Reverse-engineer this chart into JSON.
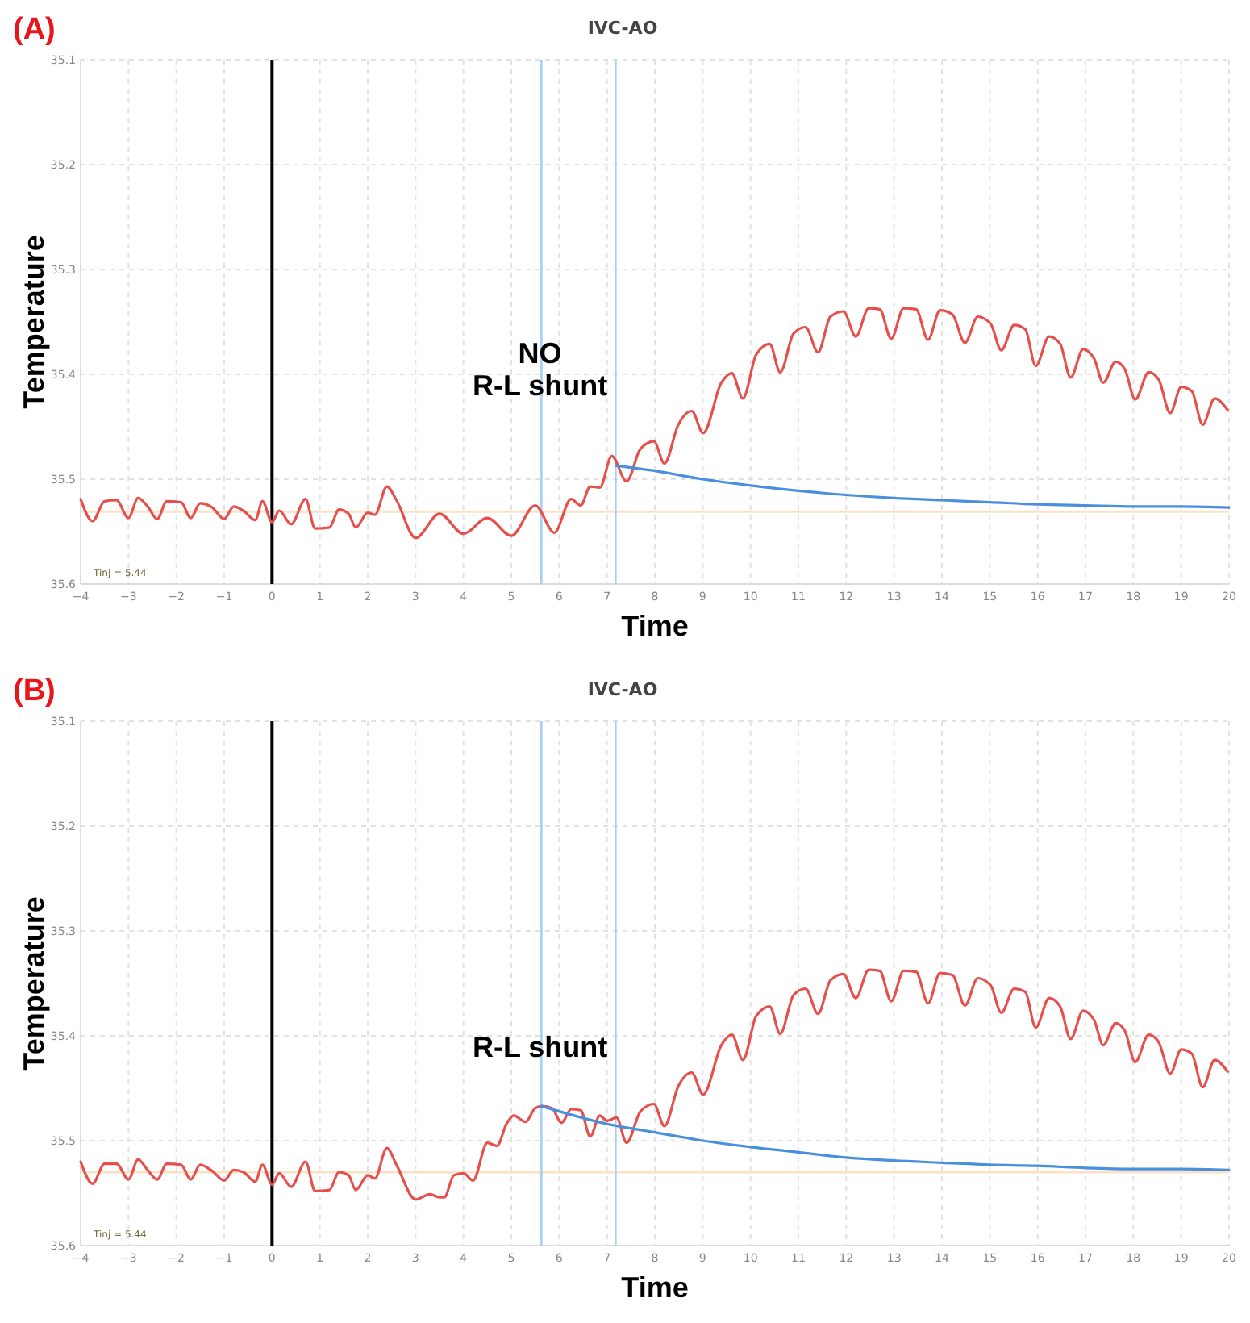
{
  "chart_data": [
    {
      "type": "line",
      "title": "IVC-AO",
      "xlabel": "Time",
      "ylabel": "Temperature",
      "xlim": [
        -4,
        20
      ],
      "ylim": [
        35.6,
        35.1
      ],
      "xticks": [
        -4,
        -3,
        -2,
        -1,
        0,
        1,
        2,
        3,
        4,
        5,
        6,
        7,
        8,
        9,
        10,
        11,
        12,
        13,
        14,
        15,
        16,
        17,
        18,
        19,
        20
      ],
      "yticks": [
        35.1,
        35.2,
        35.3,
        35.4,
        35.5,
        35.6
      ],
      "grid": true,
      "line_style": "solid",
      "marker": "none",
      "annotations": [
        "(A)",
        "Tinj = 5.44",
        {
          "text": "NO\nR-L shunt",
          "x": 5.6,
          "y": 35.42
        }
      ],
      "ref_lines": [
        {
          "axis": "y",
          "value": 35.531,
          "color": "#fbe1c6"
        },
        {
          "axis": "x",
          "value": 0,
          "color": "#000000"
        },
        {
          "axis": "x",
          "value": 5.63,
          "color": "#a9cff2"
        },
        {
          "axis": "x",
          "value": 7.18,
          "color": "#a9cff2"
        }
      ],
      "series": [
        {
          "color": "#e5504c",
          "x": [
            -4,
            -3.75,
            -3.5,
            -3.25,
            -3,
            -2.8,
            -2.6,
            -2.4,
            -2.2,
            -1.9,
            -1.7,
            -1.5,
            -1.25,
            -1,
            -0.8,
            -0.6,
            -0.35,
            -0.2,
            0,
            0.15,
            0.4,
            0.7,
            0.9,
            1.2,
            1.4,
            1.6,
            1.75,
            2,
            2.15,
            2.4,
            2.6,
            3,
            3.5,
            4,
            4.5,
            5,
            5.5,
            5.9,
            6.25,
            6.45,
            6.65,
            6.85,
            7.1,
            7.41,
            7.7,
            7.98,
            8.2,
            8.49,
            8.77,
            9.01,
            9.39,
            9.61,
            9.84,
            10.12,
            10.4,
            10.62,
            10.9,
            11.15,
            11.41,
            11.67,
            11.94,
            12.2,
            12.47,
            12.7,
            12.94,
            13.2,
            13.46,
            13.71,
            13.96,
            14.22,
            14.48,
            14.75,
            15.02,
            15.24,
            15.51,
            15.74,
            15.96,
            16.24,
            16.47,
            16.69,
            16.95,
            17.18,
            17.37,
            17.63,
            17.82,
            18.04,
            18.32,
            18.53,
            18.77,
            19,
            19.22,
            19.45,
            19.7,
            19.97
          ],
          "values": [
            35.519,
            35.54,
            35.521,
            35.52,
            35.537,
            35.518,
            35.526,
            35.538,
            35.521,
            35.522,
            35.537,
            35.523,
            35.527,
            35.538,
            35.526,
            35.53,
            35.539,
            35.521,
            35.541,
            35.53,
            35.543,
            35.519,
            35.547,
            35.546,
            35.529,
            35.533,
            35.546,
            35.532,
            35.534,
            35.507,
            35.52,
            35.556,
            35.533,
            35.552,
            35.537,
            35.554,
            35.525,
            35.551,
            35.519,
            35.525,
            35.507,
            35.508,
            35.478,
            35.502,
            35.471,
            35.464,
            35.485,
            35.448,
            35.435,
            35.456,
            35.408,
            35.399,
            35.423,
            35.381,
            35.371,
            35.398,
            35.361,
            35.355,
            35.379,
            35.345,
            35.34,
            35.364,
            35.337,
            35.338,
            35.366,
            35.337,
            35.338,
            35.367,
            35.339,
            35.343,
            35.37,
            35.345,
            35.352,
            35.377,
            35.353,
            35.357,
            35.392,
            35.364,
            35.371,
            35.403,
            35.376,
            35.385,
            35.408,
            35.388,
            35.395,
            35.424,
            35.398,
            35.405,
            35.437,
            35.412,
            35.416,
            35.448,
            35.423,
            35.434
          ]
        },
        {
          "color": "#4a8fdc",
          "x": [
            7.18,
            8,
            9,
            10,
            11,
            12,
            13,
            14,
            15,
            16,
            17,
            18,
            19,
            20
          ],
          "values": [
            35.487,
            35.492,
            35.5,
            35.506,
            35.511,
            35.515,
            35.518,
            35.52,
            35.522,
            35.524,
            35.525,
            35.526,
            35.526,
            35.527
          ]
        }
      ]
    },
    {
      "type": "line",
      "title": "IVC-AO",
      "xlabel": "Time",
      "ylabel": "Temperature",
      "xlim": [
        -4,
        20
      ],
      "ylim": [
        35.6,
        35.1
      ],
      "xticks": [
        -4,
        -3,
        -2,
        -1,
        0,
        1,
        2,
        3,
        4,
        5,
        6,
        7,
        8,
        9,
        10,
        11,
        12,
        13,
        14,
        15,
        16,
        17,
        18,
        19,
        20
      ],
      "yticks": [
        35.1,
        35.2,
        35.3,
        35.4,
        35.5,
        35.6
      ],
      "grid": true,
      "line_style": "solid",
      "marker": "none",
      "annotations": [
        "(B)",
        "Tinj = 5.44",
        {
          "text": "R-L shunt",
          "x": 5.6,
          "y": 35.42
        }
      ],
      "ref_lines": [
        {
          "axis": "y",
          "value": 35.53,
          "color": "#fbe1c6"
        },
        {
          "axis": "x",
          "value": 0,
          "color": "#000000"
        },
        {
          "axis": "x",
          "value": 5.63,
          "color": "#a9cff2"
        },
        {
          "axis": "x",
          "value": 7.18,
          "color": "#a9cff2"
        }
      ],
      "series": [
        {
          "color": "#e5504c",
          "x": [
            -4,
            -3.75,
            -3.5,
            -3.25,
            -3,
            -2.8,
            -2.6,
            -2.4,
            -2.2,
            -1.9,
            -1.7,
            -1.5,
            -1.25,
            -1,
            -0.8,
            -0.6,
            -0.35,
            -0.2,
            0,
            0.15,
            0.4,
            0.7,
            0.9,
            1.2,
            1.4,
            1.6,
            1.75,
            2,
            2.15,
            2.4,
            2.6,
            3,
            3.3,
            3.5,
            3.6,
            3.8,
            4,
            4.2,
            4.5,
            4.7,
            4.9,
            5.05,
            5.3,
            5.5,
            5.65,
            5.85,
            6.05,
            6.25,
            6.45,
            6.65,
            6.85,
            7,
            7.2,
            7.41,
            7.7,
            7.98,
            8.2,
            8.49,
            8.77,
            9.01,
            9.39,
            9.61,
            9.84,
            10.12,
            10.4,
            10.62,
            10.9,
            11.15,
            11.41,
            11.67,
            11.94,
            12.2,
            12.47,
            12.7,
            12.94,
            13.2,
            13.46,
            13.71,
            13.96,
            14.22,
            14.48,
            14.75,
            15.02,
            15.24,
            15.51,
            15.74,
            15.96,
            16.24,
            16.47,
            16.69,
            16.95,
            17.18,
            17.37,
            17.63,
            17.82,
            18.04,
            18.32,
            18.53,
            18.77,
            19,
            19.22,
            19.45,
            19.7,
            19.97
          ],
          "values": [
            35.52,
            35.541,
            35.522,
            35.522,
            35.537,
            35.518,
            35.528,
            35.537,
            35.522,
            35.523,
            35.537,
            35.523,
            35.529,
            35.538,
            35.528,
            35.53,
            35.539,
            35.523,
            35.542,
            35.531,
            35.544,
            35.52,
            35.548,
            35.547,
            35.53,
            35.533,
            35.547,
            35.533,
            35.536,
            35.507,
            35.523,
            35.556,
            35.551,
            35.554,
            35.554,
            35.533,
            35.531,
            35.538,
            35.502,
            35.505,
            35.484,
            35.476,
            35.482,
            35.469,
            35.467,
            35.469,
            35.483,
            35.47,
            35.471,
            35.496,
            35.476,
            35.481,
            35.478,
            35.502,
            35.472,
            35.465,
            35.486,
            35.448,
            35.435,
            35.456,
            35.409,
            35.399,
            35.423,
            35.381,
            35.372,
            35.398,
            35.361,
            35.355,
            35.379,
            35.347,
            35.341,
            35.364,
            35.337,
            35.338,
            35.367,
            35.338,
            35.339,
            35.369,
            35.34,
            35.342,
            35.371,
            35.345,
            35.352,
            35.378,
            35.355,
            35.358,
            35.392,
            35.364,
            35.372,
            35.403,
            35.376,
            35.385,
            35.409,
            35.388,
            35.395,
            35.425,
            35.399,
            35.406,
            35.436,
            35.413,
            35.417,
            35.449,
            35.423,
            35.434
          ]
        },
        {
          "color": "#4a8fdc",
          "x": [
            5.63,
            6,
            7,
            8,
            9,
            10,
            11,
            12,
            13,
            14,
            15,
            16,
            17,
            18,
            19,
            20
          ],
          "values": [
            35.467,
            35.472,
            35.484,
            35.492,
            35.5,
            35.506,
            35.511,
            35.516,
            35.519,
            35.521,
            35.523,
            35.524,
            35.526,
            35.527,
            35.527,
            35.528
          ]
        }
      ]
    }
  ]
}
